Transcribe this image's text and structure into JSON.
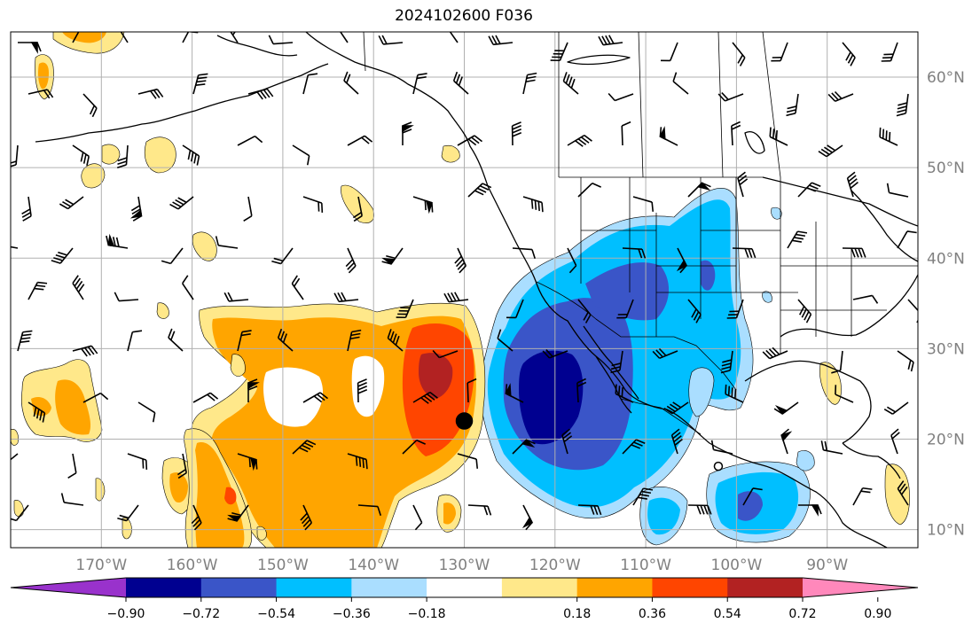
{
  "title": "2024102600 F036",
  "map": {
    "lon_range": [
      -180,
      -80
    ],
    "lat_range": [
      8,
      65
    ],
    "lon_ticks": [
      {
        "value": -170,
        "label": "170°W"
      },
      {
        "value": -160,
        "label": "160°W"
      },
      {
        "value": -150,
        "label": "150°W"
      },
      {
        "value": -140,
        "label": "140°W"
      },
      {
        "value": -130,
        "label": "130°W"
      },
      {
        "value": -120,
        "label": "120°W"
      },
      {
        "value": -110,
        "label": "110°W"
      },
      {
        "value": -100,
        "label": "100°W"
      },
      {
        "value": -90,
        "label": "90°W"
      }
    ],
    "lat_ticks": [
      {
        "value": 60,
        "label": "60°N"
      },
      {
        "value": 50,
        "label": "50°N"
      },
      {
        "value": 40,
        "label": "40°N"
      },
      {
        "value": 30,
        "label": "30°N"
      },
      {
        "value": 20,
        "label": "20°N"
      },
      {
        "value": 10,
        "label": "10°N"
      }
    ],
    "grid": true,
    "markers": [
      {
        "name": "filled-dot",
        "lon": -130,
        "lat": 22,
        "filled": true
      },
      {
        "name": "open-dot",
        "lon": -102,
        "lat": 17,
        "filled": false
      }
    ]
  },
  "colorbar": {
    "colors": [
      "#9932cc",
      "#000090",
      "#3a55c8",
      "#00bfff",
      "#aadeff",
      "#ffffff",
      "#ffe88a",
      "#ffa500",
      "#ff4500",
      "#b22222",
      "#ff88bb"
    ],
    "tick_labels": [
      "−0.90",
      "−0.72",
      "−0.54",
      "−0.36",
      "−0.18",
      "0.18",
      "0.36",
      "0.54",
      "0.72",
      "0.90"
    ]
  }
}
